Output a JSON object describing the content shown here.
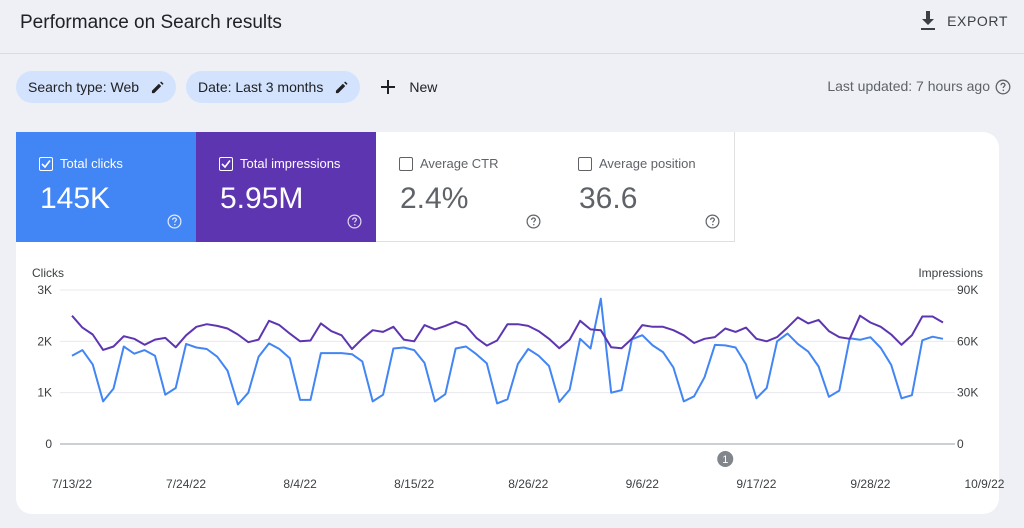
{
  "header": {
    "title": "Performance on Search results",
    "export_label": "EXPORT"
  },
  "filters": {
    "search_type": "Search type: Web",
    "date": "Date: Last 3 months",
    "new_label": "New"
  },
  "status": {
    "last_updated": "Last updated: 7 hours ago"
  },
  "metrics": [
    {
      "label": "Total clicks",
      "value": "145K",
      "checked": true,
      "color": "#4285f4"
    },
    {
      "label": "Total impressions",
      "value": "5.95M",
      "checked": true,
      "color": "#5e35b1"
    },
    {
      "label": "Average CTR",
      "value": "2.4%",
      "checked": false
    },
    {
      "label": "Average position",
      "value": "36.6",
      "checked": false
    }
  ],
  "annotation": {
    "label": "1",
    "date": "9/14/22"
  },
  "chart_data": {
    "type": "line",
    "x_start": "7/13/22",
    "x_end": "10/11/22",
    "x_tick_labels": [
      "7/13/22",
      "7/24/22",
      "8/4/22",
      "8/15/22",
      "8/26/22",
      "9/6/22",
      "9/17/22",
      "9/28/22",
      "10/9/22"
    ],
    "y_left": {
      "label": "Clicks",
      "ticks": [
        "0",
        "1K",
        "2K",
        "3K"
      ],
      "range": [
        0,
        3000
      ]
    },
    "y_right": {
      "label": "Impressions",
      "ticks": [
        "0",
        "30K",
        "60K",
        "90K"
      ],
      "range": [
        0,
        90000
      ]
    },
    "grid": true,
    "series": [
      {
        "name": "Clicks",
        "axis": "left",
        "color": "#4285f4",
        "values": [
          1720,
          1830,
          1550,
          830,
          1080,
          1900,
          1760,
          1830,
          1720,
          960,
          1090,
          1950,
          1880,
          1850,
          1700,
          1430,
          770,
          1000,
          1700,
          1960,
          1850,
          1670,
          860,
          860,
          1770,
          1770,
          1770,
          1750,
          1610,
          830,
          960,
          1860,
          1880,
          1830,
          1580,
          830,
          970,
          1860,
          1900,
          1750,
          1570,
          790,
          870,
          1560,
          1850,
          1720,
          1520,
          820,
          1060,
          2050,
          1860,
          2830,
          1000,
          1050,
          2040,
          2120,
          1920,
          1790,
          1490,
          830,
          930,
          1300,
          1930,
          1920,
          1880,
          1550,
          890,
          1090,
          2000,
          2150,
          1950,
          1800,
          1510,
          920,
          1040,
          2060,
          2030,
          2080,
          1870,
          1540,
          890,
          950,
          2020,
          2090,
          2050
        ]
      },
      {
        "name": "Impressions",
        "axis": "right",
        "color": "#5e35b1",
        "values": [
          75000,
          68000,
          64000,
          55000,
          57000,
          63000,
          61500,
          58000,
          61000,
          62000,
          56500,
          63500,
          68500,
          70000,
          69000,
          67500,
          64000,
          59500,
          61000,
          72000,
          69500,
          64500,
          60000,
          60500,
          70500,
          66000,
          63500,
          55500,
          61500,
          66500,
          65500,
          68500,
          61000,
          60000,
          69500,
          67000,
          69000,
          71500,
          69000,
          62000,
          57500,
          60500,
          70000,
          70000,
          69000,
          66000,
          61500,
          56000,
          61000,
          72000,
          67000,
          66500,
          56500,
          56000,
          61500,
          69500,
          68500,
          68500,
          66500,
          63500,
          59000,
          61500,
          62500,
          67500,
          65500,
          68000,
          61500,
          60000,
          62500,
          68000,
          74000,
          70500,
          72500,
          66000,
          62500,
          61500,
          75000,
          71000,
          68500,
          64000,
          58000,
          63500,
          74500,
          74500,
          71000
        ]
      }
    ]
  }
}
